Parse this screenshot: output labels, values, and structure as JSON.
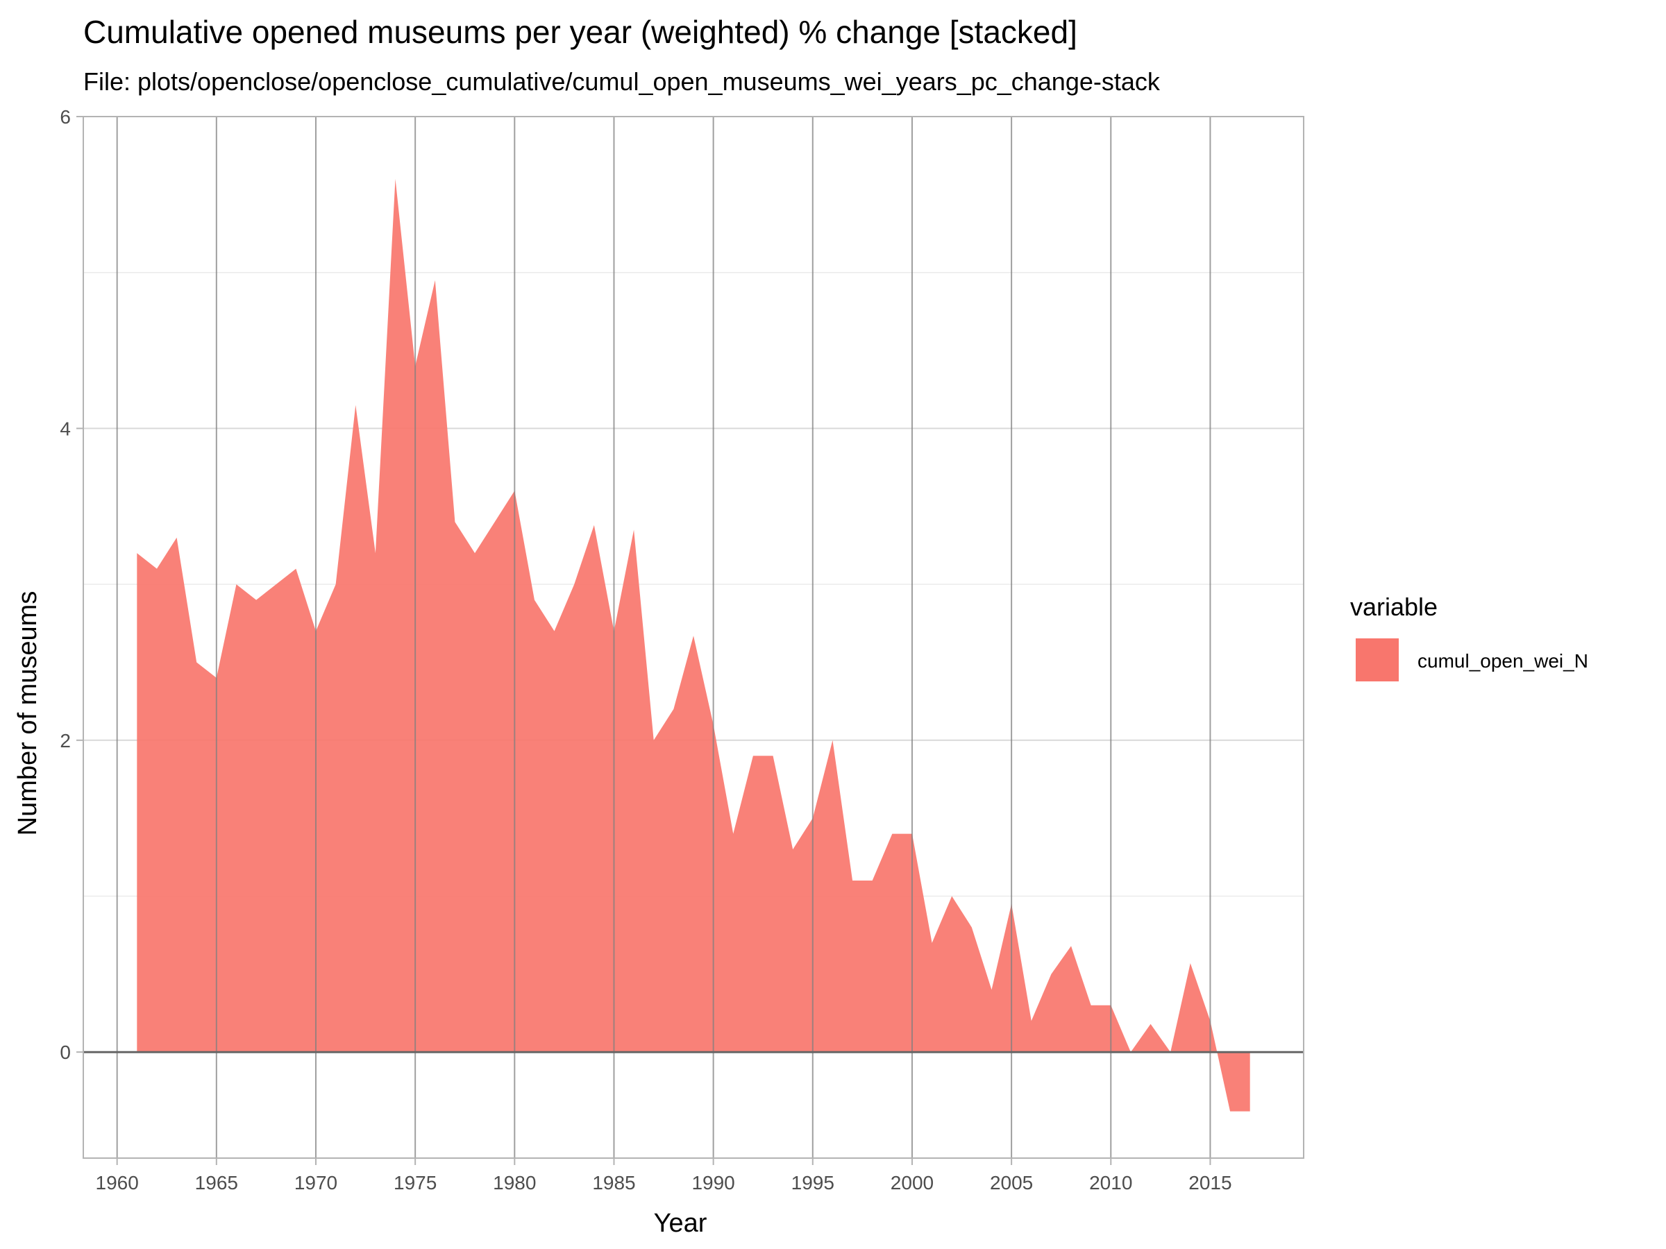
{
  "chart_data": {
    "type": "area",
    "title": "Cumulative opened museums per year (weighted) % change [stacked]",
    "subtitle": "File: plots/openclose/openclose_cumulative/cumul_open_museums_wei_years_pc_change-stack",
    "xlabel": "Year",
    "ylabel": "Number of museums",
    "xlim": [
      1958.3,
      2019.7
    ],
    "ylim": [
      -0.68,
      6.0
    ],
    "x_ticks": [
      1960,
      1965,
      1970,
      1975,
      1980,
      1985,
      1990,
      1995,
      2000,
      2005,
      2010,
      2015
    ],
    "x_tick_labels": [
      "1960",
      "1965",
      "1970",
      "1975",
      "1980",
      "1985",
      "1990",
      "1995",
      "2000",
      "2005",
      "2010",
      "2015"
    ],
    "y_ticks": [
      0,
      2,
      4,
      6
    ],
    "y_tick_labels": [
      "0",
      "2",
      "4",
      "6"
    ],
    "grid": true,
    "legend": {
      "title": "variable",
      "position": "right"
    },
    "series": [
      {
        "name": "cumul_open_wei_N",
        "color": "#f8766d",
        "x": [
          1961,
          1962,
          1963,
          1964,
          1965,
          1966,
          1967,
          1968,
          1969,
          1970,
          1971,
          1972,
          1973,
          1974,
          1975,
          1976,
          1977,
          1978,
          1979,
          1980,
          1981,
          1982,
          1983,
          1984,
          1985,
          1986,
          1987,
          1988,
          1989,
          1990,
          1991,
          1992,
          1993,
          1994,
          1995,
          1996,
          1997,
          1998,
          1999,
          2000,
          2001,
          2002,
          2003,
          2004,
          2005,
          2006,
          2007,
          2008,
          2009,
          2010,
          2011,
          2012,
          2013,
          2014,
          2015,
          2016,
          2017
        ],
        "values": [
          3.2,
          3.1,
          3.3,
          2.5,
          2.4,
          3.0,
          2.9,
          3.0,
          3.1,
          2.7,
          3.0,
          4.15,
          3.2,
          5.6,
          4.4,
          4.95,
          3.4,
          3.2,
          3.4,
          3.6,
          2.9,
          2.7,
          3.0,
          3.38,
          2.7,
          3.35,
          2.0,
          2.2,
          2.67,
          2.1,
          1.4,
          1.9,
          1.9,
          1.3,
          1.5,
          2.0,
          1.1,
          1.1,
          1.4,
          1.4,
          0.7,
          1.0,
          0.8,
          0.4,
          0.95,
          0.2,
          0.5,
          0.68,
          0.3,
          0.3,
          0.0,
          0.18,
          0.0,
          0.57,
          0.2,
          -0.38,
          -0.38
        ]
      }
    ]
  }
}
